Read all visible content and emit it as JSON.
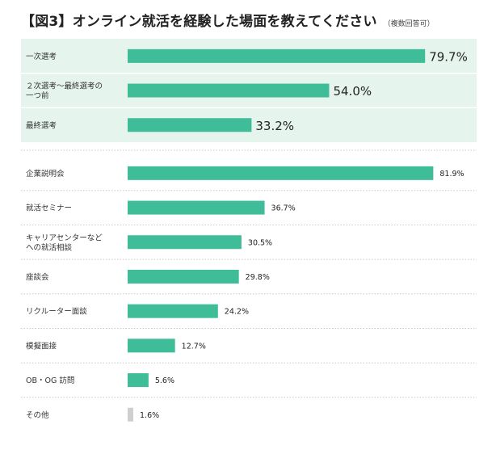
{
  "title": "【図3】オンライン就活を経験した場面を教えてください",
  "note": "（複数回答可）",
  "colors": {
    "bar": "#3ebd98",
    "bar_other": "#cfcfcf",
    "highlight_bg": "#e6f4ee",
    "divider": "#c8c8c8",
    "label": "#333333"
  },
  "chart_data": [
    {
      "type": "bar",
      "orientation": "horizontal",
      "highlighted": true,
      "categories": [
        "一次選考",
        "２次選考～最終選考の一つ前",
        "最終選考"
      ],
      "category_lines": [
        [
          "一次選考"
        ],
        [
          "２次選考～最終選考の",
          "一つ前"
        ],
        [
          "最終選考"
        ]
      ],
      "values": [
        79.7,
        54.0,
        33.2
      ],
      "value_labels": [
        "79.7%",
        "54.0%",
        "33.2%"
      ],
      "unit": "%",
      "xlim": [
        0,
        100
      ]
    },
    {
      "type": "bar",
      "orientation": "horizontal",
      "highlighted": false,
      "categories": [
        "企業説明会",
        "就活セミナー",
        "キャリアセンターなどへの就活相談",
        "座談会",
        "リクルーター面談",
        "模擬面接",
        "OB・OG 訪問",
        "その他"
      ],
      "category_lines": [
        [
          "企業説明会"
        ],
        [
          "就活セミナー"
        ],
        [
          "キャリアセンターなど",
          "への就活相談"
        ],
        [
          "座談会"
        ],
        [
          "リクルーター面談"
        ],
        [
          "模擬面接"
        ],
        [
          "OB・OG 訪問"
        ],
        [
          "その他"
        ]
      ],
      "values": [
        81.9,
        36.7,
        30.5,
        29.8,
        24.2,
        12.7,
        5.6,
        1.6
      ],
      "value_labels": [
        "81.9%",
        "36.7%",
        "30.5%",
        "29.8%",
        "24.2%",
        "12.7%",
        "5.6%",
        "1.6%"
      ],
      "unit": "%",
      "xlim": [
        0,
        100
      ]
    }
  ]
}
